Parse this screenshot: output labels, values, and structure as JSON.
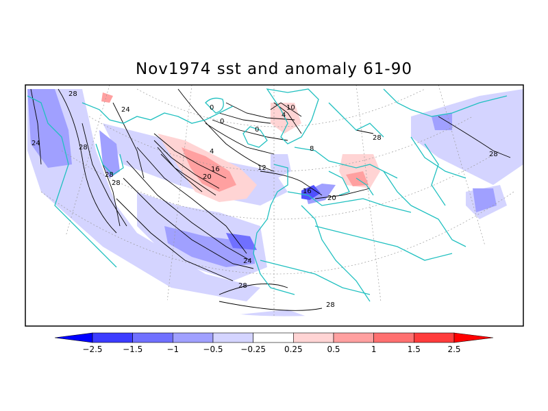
{
  "title": "Nov1974 sst and anomaly 61-90",
  "colorbar": {
    "colors": [
      "#0000ff",
      "#3c3cff",
      "#7070ff",
      "#a0a0ff",
      "#d4d4ff",
      "#ffffff",
      "#ffd4d4",
      "#ffa0a0",
      "#ff7070",
      "#ff3c3c",
      "#ff0000"
    ],
    "labels": [
      "−2.5",
      "−1.5",
      "−1",
      "−0.5",
      "−0.25",
      "0.25",
      "0.5",
      "1",
      "1.5",
      "2.5"
    ],
    "values": [
      -2.5,
      -1.5,
      -1,
      -0.5,
      -0.25,
      0.25,
      0.5,
      1,
      1.5,
      2.5
    ]
  },
  "contour_labels": [
    "28",
    "24",
    "24",
    "28",
    "28",
    "28",
    "0",
    "0",
    "0",
    "4",
    "4",
    "8",
    "10",
    "12",
    "16",
    "20",
    "16",
    "20",
    "24",
    "28",
    "28",
    "28",
    "28"
  ],
  "colors": {
    "coastline": "#20c0c0",
    "contour": "#000000",
    "land": "#ffffff"
  }
}
